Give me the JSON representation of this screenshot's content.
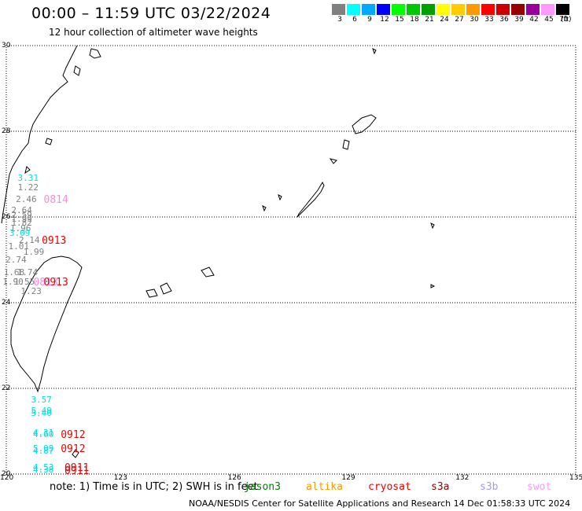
{
  "header": {
    "title": "00:00 – 11:59 UTC 03/22/2024",
    "subtitle": "12 hour collection of altimeter wave heights"
  },
  "colorbar": {
    "ticks": [
      "3",
      "6",
      "9",
      "12",
      "15",
      "18",
      "21",
      "24",
      "27",
      "30",
      "33",
      "36",
      "39",
      "42",
      "45",
      "70"
    ],
    "unit": "(ft)",
    "colors": [
      "#808080",
      "#00ffff",
      "#00a8ff",
      "#0000ff",
      "#00ff00",
      "#00c800",
      "#00a000",
      "#ffff00",
      "#ffcc00",
      "#ff9900",
      "#ff0000",
      "#cc0000",
      "#990000",
      "#990099",
      "#ff99ff",
      "#000000"
    ]
  },
  "axes": {
    "y_ticks": [
      "30",
      "28",
      "26",
      "24",
      "22",
      "20"
    ],
    "x_ticks": [
      "120",
      "123",
      "126",
      "129",
      "132",
      "135"
    ]
  },
  "wave_labels": [
    {
      "text": "3.31",
      "color": "#00e0e0",
      "lon": 120.55,
      "lat": 26.9
    },
    {
      "text": "1.22",
      "color": "#808080",
      "lon": 120.55,
      "lat": 26.68
    },
    {
      "text": "2.46",
      "color": "#808080",
      "lon": 120.5,
      "lat": 26.4
    },
    {
      "text": "0814",
      "color": "#ff88dd",
      "lon": 121.15,
      "lat": 26.4
    },
    {
      "text": "2.64",
      "color": "#808080",
      "lon": 120.38,
      "lat": 26.15
    },
    {
      "text": "2.59",
      "color": "#808080",
      "lon": 120.38,
      "lat": 26.04
    },
    {
      "text": "1.99",
      "color": "#808080",
      "lon": 120.38,
      "lat": 25.95
    },
    {
      "text": "1.82",
      "color": "#808080",
      "lon": 120.38,
      "lat": 25.86
    },
    {
      "text": "1.96",
      "color": "#808080",
      "lon": 120.35,
      "lat": 25.72
    },
    {
      "text": "3.09",
      "color": "#00e0e0",
      "lon": 120.33,
      "lat": 25.62
    },
    {
      "text": "0913",
      "color": "#ee0000",
      "lon": 121.1,
      "lat": 25.45
    },
    {
      "text": "2.14",
      "color": "#808080",
      "lon": 120.58,
      "lat": 25.45
    },
    {
      "text": "1.01",
      "color": "#808080",
      "lon": 120.3,
      "lat": 25.3
    },
    {
      "text": "1.99",
      "color": "#808080",
      "lon": 120.7,
      "lat": 25.17
    },
    {
      "text": "2.74",
      "color": "#808080",
      "lon": 120.23,
      "lat": 25.0
    },
    {
      "text": "1.68",
      "color": "#808080",
      "lon": 120.18,
      "lat": 24.7
    },
    {
      "text": "1.74",
      "color": "#808080",
      "lon": 120.53,
      "lat": 24.7
    },
    {
      "text": "1.90",
      "color": "#808080",
      "lon": 120.15,
      "lat": 24.47
    },
    {
      "text": "1.55",
      "color": "#808080",
      "lon": 120.45,
      "lat": 24.47
    },
    {
      "text": "0813",
      "color": "#ff88dd",
      "lon": 120.88,
      "lat": 24.47
    },
    {
      "text": "0913",
      "color": "#ee0000",
      "lon": 121.15,
      "lat": 24.47
    },
    {
      "text": "1.23",
      "color": "#808080",
      "lon": 120.63,
      "lat": 24.25
    },
    {
      "text": "3.57",
      "color": "#00e0e0",
      "lon": 120.9,
      "lat": 21.73
    },
    {
      "text": "5.49",
      "color": "#00e0e0",
      "lon": 120.9,
      "lat": 21.47
    },
    {
      "text": "5.40",
      "color": "#00e0e0",
      "lon": 120.9,
      "lat": 21.42
    },
    {
      "text": "4.31",
      "color": "#00e0e0",
      "lon": 120.95,
      "lat": 20.96
    },
    {
      "text": "4.60",
      "color": "#00e0e0",
      "lon": 120.95,
      "lat": 20.91
    },
    {
      "text": "0912",
      "color": "#ee0000",
      "lon": 121.6,
      "lat": 20.91
    },
    {
      "text": "5.09",
      "color": "#00e0e0",
      "lon": 120.95,
      "lat": 20.58
    },
    {
      "text": "4.87",
      "color": "#00e0e0",
      "lon": 120.95,
      "lat": 20.53
    },
    {
      "text": "0912",
      "color": "#ee0000",
      "lon": 121.6,
      "lat": 20.58
    },
    {
      "text": "4.53",
      "color": "#00e0e0",
      "lon": 120.95,
      "lat": 20.15
    },
    {
      "text": "4.38",
      "color": "#00e0e0",
      "lon": 120.95,
      "lat": 20.1
    },
    {
      "text": "0911",
      "color": "#ee0000",
      "lon": 121.7,
      "lat": 20.15
    },
    {
      "text": "0911",
      "color": "#ee0000",
      "lon": 121.7,
      "lat": 20.08
    }
  ],
  "note": "note: 1) Time is in UTC; 2) SWH is in feet",
  "missions": [
    {
      "name": "jason3",
      "color": "#008000"
    },
    {
      "name": "altika",
      "color": "#ff9900"
    },
    {
      "name": "cryosat",
      "color": "#ee0000"
    },
    {
      "name": "s3a",
      "color": "#990000"
    },
    {
      "name": "s3b",
      "color": "#aa99ee"
    },
    {
      "name": "swot",
      "color": "#ff99ff"
    }
  ],
  "footer": "NOAA/NESDIS Center for Satellite Applications and Research   14 Dec 01:58:33 UTC 2024"
}
